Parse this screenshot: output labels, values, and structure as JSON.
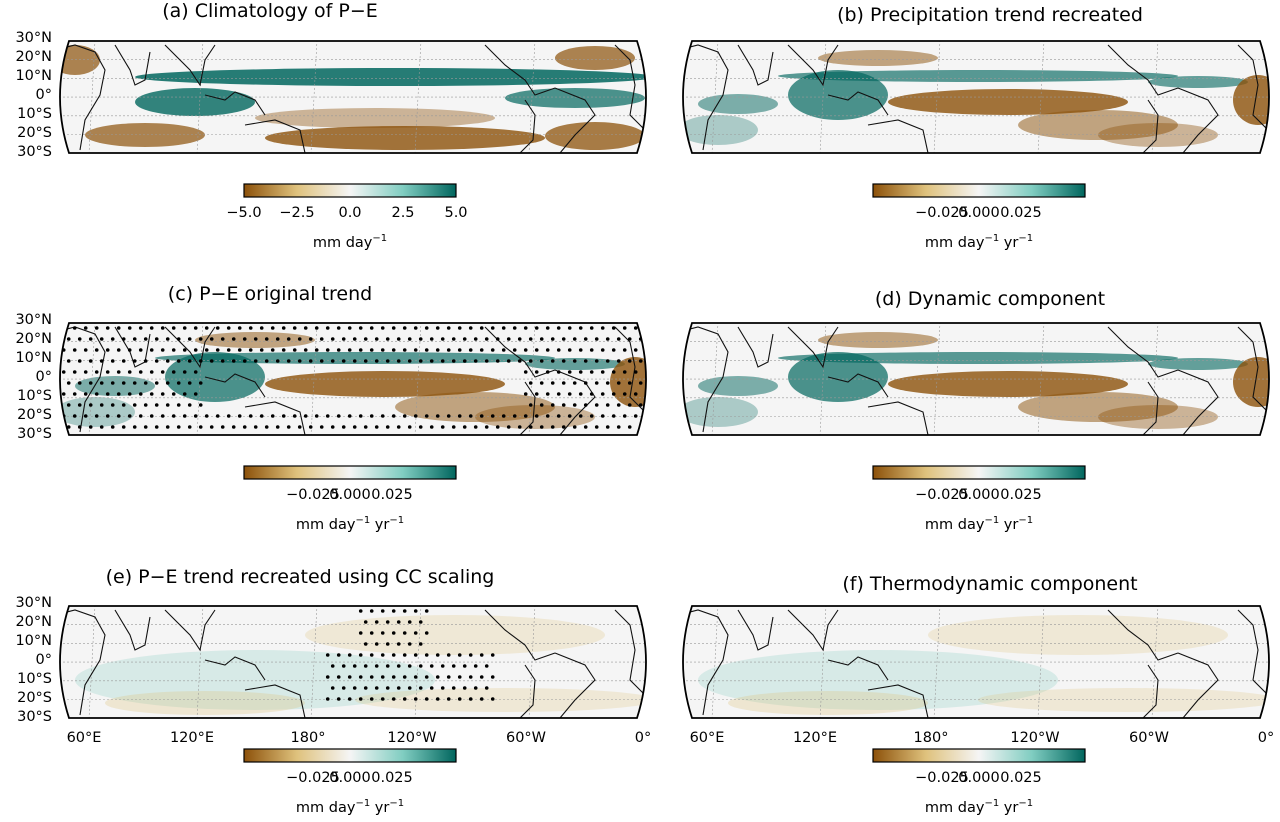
{
  "figure": {
    "panels": [
      {
        "id": "a",
        "title": "(a) Climatology of P−E",
        "stippled": false,
        "pattern": "clim",
        "colorbar": {
          "ticks": [
            "−5.0",
            "−2.5",
            "0.0",
            "2.5",
            "5.0"
          ],
          "unit": "mm day",
          "exp1": "−1",
          "exp2": ""
        }
      },
      {
        "id": "b",
        "title": "(b) Precipitation trend recreated",
        "stippled": false,
        "pattern": "trend",
        "colorbar": {
          "ticks": [
            "−0.025",
            "0.000",
            "0.025"
          ],
          "unit": "mm day",
          "exp1": "−1",
          "mid": " yr",
          "exp2": "−1"
        }
      },
      {
        "id": "c",
        "title": "(c) P−E original trend",
        "stippled": true,
        "pattern": "trend",
        "colorbar": {
          "ticks": [
            "−0.025",
            "0.000",
            "0.025"
          ],
          "unit": "mm day",
          "exp1": "−1",
          "mid": " yr",
          "exp2": "−1"
        }
      },
      {
        "id": "d",
        "title": "(d) Dynamic component",
        "stippled": false,
        "pattern": "trend",
        "colorbar": {
          "ticks": [
            "−0.025",
            "0.000",
            "0.025"
          ],
          "unit": "mm day",
          "exp1": "−1",
          "mid": " yr",
          "exp2": "−1"
        }
      },
      {
        "id": "e",
        "title": "(e) P−E trend recreated using CC scaling",
        "stippled": true,
        "pattern": "faint",
        "colorbar": {
          "ticks": [
            "−0.025",
            "0.000",
            "0.025"
          ],
          "unit": "mm day",
          "exp1": "−1",
          "mid": " yr",
          "exp2": "−1"
        }
      },
      {
        "id": "f",
        "title": "(f) Thermodynamic component",
        "stippled": false,
        "pattern": "faint",
        "colorbar": {
          "ticks": [
            "−0.025",
            "0.000",
            "0.025"
          ],
          "unit": "mm day",
          "exp1": "−1",
          "mid": " yr",
          "exp2": "−1"
        }
      }
    ],
    "lat_labels": [
      "30°N",
      "20°N",
      "10°N",
      "0°",
      "10°S",
      "20°S",
      "30°S"
    ],
    "lon_labels": [
      "60°E",
      "120°E",
      "180°",
      "120°W",
      "60°W",
      "0°"
    ],
    "colormap": {
      "low": "#8c510a",
      "midlow": "#dfc27d",
      "mid": "#f5f5f5",
      "midhigh": "#80cdc1",
      "high": "#01665e"
    }
  }
}
